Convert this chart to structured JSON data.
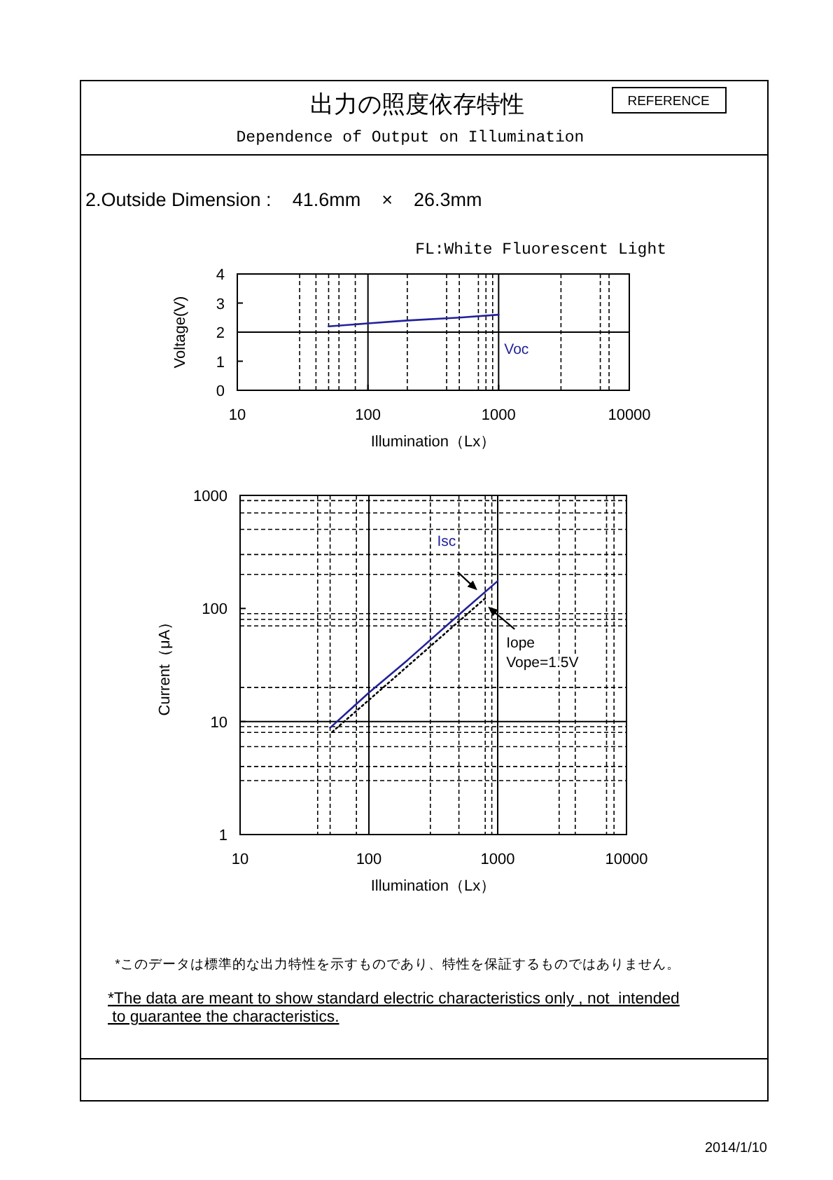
{
  "chart_data": [
    {
      "type": "other",
      "title": "出力の照度依存特性",
      "subtitle": "Dependence of Output on Illumination",
      "annotations": [
        "REFERENCE",
        "2.Outside Dimension :    41.6mm    ×    26.3mm"
      ]
    },
    {
      "type": "line",
      "subtitle": "FL:White Fluorescent Light",
      "xlabel": "Illumination（Lx）",
      "ylabel": "Voltage(V)",
      "log": "x",
      "xlim": [
        10,
        10000
      ],
      "xticks": [
        10,
        {
          "value": 30,
          "label": null
        },
        {
          "value": 40,
          "label": null
        },
        {
          "value": 50,
          "label": null
        },
        {
          "value": 60,
          "label": null
        },
        {
          "value": 80,
          "label": null
        },
        100,
        {
          "value": 200,
          "label": null
        },
        {
          "value": 400,
          "label": null
        },
        {
          "value": 500,
          "label": null
        },
        {
          "value": 700,
          "label": null
        },
        {
          "value": 800,
          "label": null
        },
        {
          "value": 900,
          "label": null
        },
        1000,
        {
          "value": 3000,
          "label": null
        },
        {
          "value": 6000,
          "label": null
        },
        {
          "value": 7000,
          "label": null
        },
        10000
      ],
      "ylim": [
        0,
        4
      ],
      "yticks": [
        0,
        1,
        2,
        3,
        4
      ],
      "grid": "x",
      "ref_lines": [
        {
          "axis": "y",
          "value": 2
        }
      ],
      "series": [
        {
          "name": "Voc",
          "color": "#22229a",
          "x": [
            50,
            100,
            200,
            500,
            1000
          ],
          "values": [
            2.2,
            2.3,
            2.4,
            2.5,
            2.6
          ]
        }
      ]
    },
    {
      "type": "line",
      "xlabel": "Illumination（Lx）",
      "ylabel": "Current（μA）",
      "log": "xy",
      "xlim": [
        10,
        10000
      ],
      "xticks": [
        10,
        {
          "value": 40,
          "label": null
        },
        {
          "value": 50,
          "label": null
        },
        {
          "value": 80,
          "label": null
        },
        100,
        {
          "value": 300,
          "label": null
        },
        {
          "value": 500,
          "label": null
        },
        {
          "value": 800,
          "label": null
        },
        {
          "value": 900,
          "label": null
        },
        1000,
        {
          "value": 3000,
          "label": null
        },
        {
          "value": 4000,
          "label": null
        },
        {
          "value": 7000,
          "label": null
        },
        {
          "value": 8000,
          "label": null
        },
        10000
      ],
      "ylim": [
        1,
        1000
      ],
      "yticks": [
        1,
        10,
        100,
        1000
      ],
      "grid": "x",
      "ref_lines": [
        {
          "axis": "y",
          "value": 3,
          "line_style": "dashed"
        },
        {
          "axis": "y",
          "value": 4,
          "line_style": "dashed"
        },
        {
          "axis": "y",
          "value": 6,
          "line_style": "dashed"
        },
        {
          "axis": "y",
          "value": 8,
          "line_style": "dashed"
        },
        {
          "axis": "y",
          "value": 9,
          "line_style": "dashed"
        },
        {
          "axis": "y",
          "value": 10
        },
        {
          "axis": "y",
          "value": 20,
          "line_style": "dashed"
        },
        {
          "axis": "y",
          "value": 70,
          "line_style": "dashed"
        },
        {
          "axis": "y",
          "value": 80,
          "line_style": "dashed"
        },
        {
          "axis": "y",
          "value": 90,
          "line_style": "dashed"
        },
        {
          "axis": "y",
          "value": 200,
          "line_style": "dashed"
        },
        {
          "axis": "y",
          "value": 300,
          "line_style": "dashed"
        },
        {
          "axis": "y",
          "value": 500,
          "line_style": "dashed"
        },
        {
          "axis": "y",
          "value": 700,
          "line_style": "dashed"
        },
        {
          "axis": "y",
          "value": 900,
          "line_style": "dashed"
        }
      ],
      "series": [
        {
          "name": "Isc",
          "color": "#22229a",
          "x": [
            50,
            100,
            200,
            500,
            1000
          ],
          "values": [
            8.8,
            18,
            35,
            88,
            175
          ]
        },
        {
          "name": "Iope",
          "color": "#000000",
          "line_style": "dotted",
          "x": [
            52,
            100,
            500,
            800
          ],
          "values": [
            8.1,
            15.5,
            77,
            123
          ]
        }
      ],
      "annotations": [
        "Vope=1.5V"
      ]
    },
    {
      "type": "other",
      "annotations": [
        "*このデータは標準的な出力特性を示すものであり、特性を保証するものではありません。",
        "*The data are meant to show standard electric characteristics only , not  intended to guarantee the characteristics.",
        "2014/1/10"
      ]
    }
  ]
}
